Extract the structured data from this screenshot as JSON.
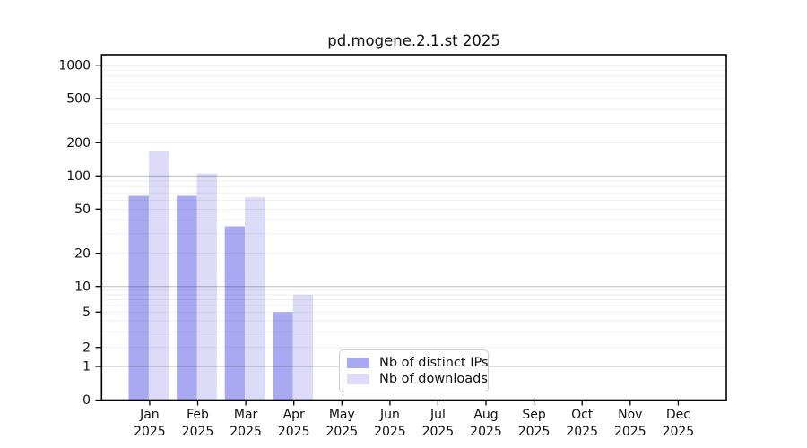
{
  "chart_data": {
    "type": "bar",
    "title": "pd.mogene.2.1.st 2025",
    "categories": [
      "Jan",
      "Feb",
      "Mar",
      "Apr",
      "May",
      "Jun",
      "Jul",
      "Aug",
      "Sep",
      "Oct",
      "Nov",
      "Dec"
    ],
    "category_year": "2025",
    "series": [
      {
        "name": "Nb of distinct IPs",
        "color": "#a9a9f2",
        "values": [
          66,
          66,
          35,
          5,
          0,
          0,
          0,
          0,
          0,
          0,
          0,
          0
        ]
      },
      {
        "name": "Nb of downloads",
        "color": "#dcdcf8",
        "values": [
          170,
          105,
          64,
          8,
          0,
          0,
          0,
          0,
          0,
          0,
          0,
          0
        ]
      }
    ],
    "y_ticks": [
      0,
      1,
      2,
      5,
      10,
      20,
      50,
      100,
      200,
      500,
      1000
    ],
    "y_scale": "log-like (0 linear segment, then logarithmic)",
    "ylim": [
      0,
      1000
    ],
    "xlabel": "",
    "ylabel": "",
    "grid": "horizontal major lines at powers of 10, faint minor log lines",
    "legend_position": "inside plot, lower center-left"
  },
  "colors": {
    "distinct_ips_bar": "#a9a9f2",
    "downloads_bar": "#dcdcf8",
    "major_gridline": "#bdbdbd",
    "minor_gridline": "#eeeeee",
    "axis": "#000000"
  }
}
